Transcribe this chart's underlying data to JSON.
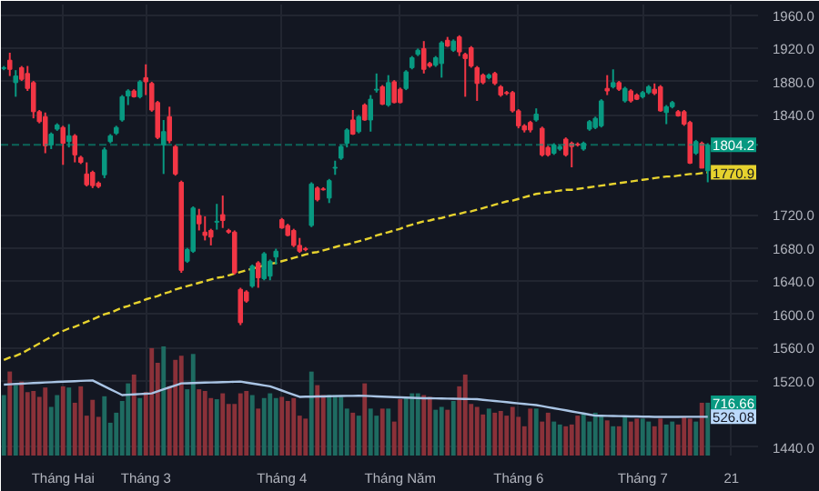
{
  "chart_data": {
    "type": "candlestick",
    "categories": [
      null,
      null,
      null,
      null,
      null,
      null,
      null,
      null,
      null,
      null,
      "Tháng Hai",
      null,
      null,
      null,
      null,
      null,
      null,
      null,
      null,
      null,
      null,
      null,
      null,
      null,
      "Tháng 3",
      null,
      null,
      null,
      null,
      null,
      null,
      null,
      null,
      null,
      null,
      null,
      null,
      null,
      null,
      null,
      null,
      null,
      null,
      null,
      null,
      null,
      null,
      "Tháng 4",
      null,
      null,
      null,
      null,
      null,
      null,
      null,
      null,
      null,
      null,
      null,
      null,
      null,
      null,
      null,
      null,
      null,
      null,
      null,
      "Tháng Năm",
      null,
      null,
      null,
      null,
      null,
      null,
      null,
      null,
      null,
      null,
      null,
      null,
      null,
      null,
      null,
      null,
      null,
      null,
      null,
      "Tháng 6",
      null,
      null,
      null,
      null,
      null,
      null,
      null,
      null,
      null,
      null,
      null,
      null,
      null,
      null,
      null,
      null,
      null,
      null,
      null,
      null,
      "Tháng 7",
      null,
      null,
      null,
      null,
      null,
      null,
      null,
      null,
      null,
      null,
      null,
      null,
      null,
      null,
      "21",
      null,
      null,
      null,
      null
    ],
    "ohlc": [
      [
        1896,
        1899,
        1894,
        1897
      ],
      [
        1906,
        1915,
        1887,
        1895
      ],
      [
        1879,
        1894,
        1862,
        1887
      ],
      [
        1897,
        1899,
        1881,
        1883
      ],
      [
        1890,
        1899,
        1869,
        1872
      ],
      [
        1879,
        1881,
        1836,
        1844
      ],
      [
        1844,
        1846,
        1830,
        1832
      ],
      [
        1838,
        1843,
        1794,
        1803
      ],
      [
        1804,
        1819,
        1799,
        1817
      ],
      [
        1823,
        1830,
        1821,
        1828
      ],
      [
        1825,
        1827,
        1780,
        1806
      ],
      [
        1808,
        1829,
        1801,
        1815
      ],
      [
        1815,
        1817,
        1783,
        1792
      ],
      [
        1789,
        1791,
        1781,
        1783
      ],
      [
        1769,
        1783,
        1754,
        1756
      ],
      [
        1771,
        1773,
        1752,
        1755
      ],
      [
        1758,
        1760,
        1752,
        1754
      ],
      [
        1768,
        1801,
        1764,
        1798
      ],
      [
        1808,
        1817,
        1806,
        1815
      ],
      [
        1818,
        1827,
        1816,
        1825
      ],
      [
        1834,
        1864,
        1832,
        1862
      ],
      [
        1863,
        1871,
        1852,
        1869
      ],
      [
        1869,
        1871,
        1861,
        1862
      ],
      [
        1862,
        1882,
        1860,
        1880
      ],
      [
        1885,
        1901,
        1864,
        1880
      ],
      [
        1878,
        1880,
        1844,
        1846
      ],
      [
        1855,
        1857,
        1811,
        1813
      ],
      [
        1804,
        1834,
        1769,
        1820
      ],
      [
        1838,
        1850,
        1806,
        1809
      ],
      [
        1802,
        1804,
        1767,
        1769
      ],
      [
        1759,
        1761,
        1650,
        1653
      ],
      [
        1664,
        1680,
        1662,
        1678
      ],
      [
        1676,
        1730,
        1674,
        1728
      ],
      [
        1719,
        1727,
        1701,
        1709
      ],
      [
        1699,
        1718,
        1689,
        1695
      ],
      [
        1701,
        1703,
        1683,
        1693
      ],
      [
        1711,
        1733,
        1702,
        1712
      ],
      [
        1720,
        1743,
        1704,
        1713
      ],
      [
        1701,
        1703,
        1697,
        1699
      ],
      [
        1699,
        1701,
        1648,
        1650
      ],
      [
        1630,
        1632,
        1587,
        1590
      ],
      [
        1627,
        1629,
        1614,
        1616
      ],
      [
        1634,
        1660,
        1632,
        1658
      ],
      [
        1662,
        1664,
        1632,
        1644
      ],
      [
        1643,
        1675,
        1641,
        1673
      ],
      [
        1646,
        1666,
        1641,
        1664
      ],
      [
        1669,
        1679,
        1660,
        1676
      ],
      [
        1714,
        1716,
        1703,
        1704
      ],
      [
        1707,
        1709,
        1694,
        1695
      ],
      [
        1701,
        1703,
        1681,
        1683
      ],
      [
        1683,
        1692,
        1674,
        1676
      ],
      [
        1679,
        1681,
        1676,
        1678
      ],
      [
        1707,
        1759,
        1705,
        1757
      ],
      [
        1752,
        1754,
        1736,
        1738
      ],
      [
        1751,
        1753,
        1749,
        1750
      ],
      [
        1740,
        1763,
        1734,
        1761
      ],
      [
        1776,
        1785,
        1768,
        1777
      ],
      [
        1788,
        1804,
        1786,
        1802
      ],
      [
        1806,
        1824,
        1801,
        1822
      ],
      [
        1834,
        1846,
        1816,
        1817
      ],
      [
        1820,
        1840,
        1818,
        1838
      ],
      [
        1852,
        1854,
        1833,
        1834
      ],
      [
        1834,
        1864,
        1820,
        1859
      ],
      [
        1870,
        1890,
        1867,
        1871
      ],
      [
        1874,
        1876,
        1852,
        1853
      ],
      [
        1852,
        1888,
        1850,
        1879
      ],
      [
        1880,
        1882,
        1854,
        1855
      ],
      [
        1871,
        1873,
        1854,
        1855
      ],
      [
        1872,
        1894,
        1870,
        1892
      ],
      [
        1897,
        1911,
        1895,
        1909
      ],
      [
        1913,
        1920,
        1911,
        1918
      ],
      [
        1920,
        1929,
        1890,
        1895
      ],
      [
        1902,
        1904,
        1897,
        1899
      ],
      [
        1900,
        1911,
        1898,
        1909
      ],
      [
        1902,
        1929,
        1885,
        1927
      ],
      [
        1930,
        1934,
        1922,
        1923
      ],
      [
        1918,
        1931,
        1916,
        1929
      ],
      [
        1934,
        1936,
        1911,
        1916
      ],
      [
        1913,
        1915,
        1862,
        1908
      ],
      [
        1921,
        1923,
        1897,
        1899
      ],
      [
        1897,
        1899,
        1857,
        1878
      ],
      [
        1888,
        1890,
        1877,
        1879
      ],
      [
        1885,
        1890,
        1883,
        1888
      ],
      [
        1890,
        1892,
        1876,
        1878
      ],
      [
        1874,
        1876,
        1862,
        1864
      ],
      [
        1867,
        1869,
        1864,
        1866
      ],
      [
        1867,
        1869,
        1843,
        1845
      ],
      [
        1845,
        1847,
        1824,
        1827
      ],
      [
        1827,
        1829,
        1819,
        1822
      ],
      [
        1831,
        1833,
        1819,
        1822
      ],
      [
        1834,
        1848,
        1832,
        1841
      ],
      [
        1824,
        1826,
        1790,
        1792
      ],
      [
        1801,
        1803,
        1790,
        1792
      ],
      [
        1794,
        1806,
        1792,
        1804
      ],
      [
        1799,
        1804,
        1797,
        1802
      ],
      [
        1811,
        1813,
        1790,
        1792
      ],
      [
        1806,
        1808,
        1777,
        1802
      ],
      [
        1805,
        1807,
        1802,
        1804
      ],
      [
        1799,
        1808,
        1797,
        1806
      ],
      [
        1823,
        1834,
        1821,
        1832
      ],
      [
        1825,
        1838,
        1823,
        1836
      ],
      [
        1827,
        1859,
        1825,
        1857
      ],
      [
        1872,
        1888,
        1864,
        1869
      ],
      [
        1874,
        1895,
        1872,
        1879
      ],
      [
        1879,
        1881,
        1869,
        1871
      ],
      [
        1857,
        1874,
        1855,
        1872
      ],
      [
        1869,
        1871,
        1855,
        1857
      ],
      [
        1864,
        1866,
        1858,
        1859
      ],
      [
        1862,
        1869,
        1860,
        1867
      ],
      [
        1867,
        1876,
        1865,
        1874
      ],
      [
        1871,
        1878,
        1864,
        1866
      ],
      [
        1874,
        1876,
        1844,
        1845
      ],
      [
        1843,
        1852,
        1829,
        1850
      ],
      [
        1850,
        1857,
        1848,
        1855
      ],
      [
        1844,
        1846,
        1838,
        1839
      ],
      [
        1844,
        1846,
        1827,
        1829
      ],
      [
        1831,
        1833,
        1781,
        1782
      ],
      [
        1794,
        1810,
        1792,
        1808
      ],
      [
        1806,
        1808,
        1776,
        1776
      ],
      [
        1773,
        1806,
        1759,
        1804
      ],
      null,
      null,
      null,
      null,
      null,
      null,
      null,
      null
    ],
    "colors": [
      "#089981",
      "#f23645",
      "#089981",
      "#f23645",
      "#f23645",
      "#f23645",
      "#f23645",
      "#f23645",
      "#089981",
      "#089981",
      "#f23645",
      "#089981",
      "#f23645",
      "#f23645",
      "#f23645",
      "#f23645",
      "#f23645",
      "#089981",
      "#089981",
      "#089981",
      "#089981",
      "#089981",
      "#f23645",
      "#089981",
      "#f23645",
      "#f23645",
      "#f23645",
      "#089981",
      "#f23645",
      "#f23645",
      "#f23645",
      "#089981",
      "#089981",
      "#f23645",
      "#f23645",
      "#f23645",
      "#089981",
      "#f23645",
      "#f23645",
      "#f23645",
      "#f23645",
      "#f23645",
      "#089981",
      "#f23645",
      "#089981",
      "#089981",
      "#089981",
      "#f23645",
      "#f23645",
      "#f23645",
      "#f23645",
      "#f23645",
      "#089981",
      "#f23645",
      "#f23645",
      "#089981",
      "#089981",
      "#089981",
      "#089981",
      "#f23645",
      "#089981",
      "#f23645",
      "#089981",
      "#089981",
      "#f23645",
      "#089981",
      "#f23645",
      "#f23645",
      "#089981",
      "#089981",
      "#089981",
      "#f23645",
      "#f23645",
      "#089981",
      "#089981",
      "#f23645",
      "#089981",
      "#f23645",
      "#f23645",
      "#f23645",
      "#f23645",
      "#f23645",
      "#089981",
      "#f23645",
      "#f23645",
      "#f23645",
      "#f23645",
      "#f23645",
      "#f23645",
      "#f23645",
      "#089981",
      "#f23645",
      "#f23645",
      "#089981",
      "#089981",
      "#f23645",
      "#f23645",
      "#f23645",
      "#089981",
      "#089981",
      "#089981",
      "#089981",
      "#f23645",
      "#089981",
      "#f23645",
      "#089981",
      "#f23645",
      "#f23645",
      "#089981",
      "#089981",
      "#f23645",
      "#f23645",
      "#089981",
      "#089981",
      "#f23645",
      "#f23645",
      "#f23645",
      "#089981",
      "#f23645",
      "#089981",
      null,
      null,
      null,
      null,
      null,
      null,
      null,
      null
    ],
    "series": [
      {
        "type": "bar",
        "axis": "y2",
        "values": [
          820,
          1140,
          955,
          1003,
          860,
          876,
          796,
          923,
          660,
          820,
          939,
          923,
          716,
          939,
          541,
          756,
          525,
          804,
          445,
          581,
          740,
          979,
          1099,
          780,
          860,
          1457,
          1258,
          1481,
          939,
          1298,
          1354,
          899,
          1378,
          899,
          876,
          780,
          764,
          844,
          700,
          700,
          844,
          876,
          820,
          637,
          780,
          844,
          780,
          796,
          740,
          780,
          541,
          501,
          1139,
          955,
          820,
          820,
          820,
          796,
          637,
          581,
          541,
          979,
          637,
          541,
          637,
          637,
          461,
          764,
          780,
          844,
          844,
          820,
          796,
          621,
          660,
          621,
          740,
          939,
          1099,
          700,
          660,
          557,
          637,
          581,
          605,
          541,
          660,
          525,
          397,
          637,
          637,
          461,
          581,
          461,
          421,
          397,
          421,
          541,
          581,
          461,
          581,
          541,
          477,
          397,
          397,
          541,
          461,
          501,
          501,
          461,
          397,
          501,
          421,
          461,
          421,
          525,
          501,
          461,
          716,
          716.66,
          null,
          null,
          null,
          null,
          null,
          null,
          null,
          null
        ],
        "colors": [
          "#1e6b61",
          "#8a3139",
          "#1e6b61",
          "#8a3139",
          "#8a3139",
          "#8a3139",
          "#8a3139",
          "#8a3139",
          "#1e6b61",
          "#1e6b61",
          "#8a3139",
          "#1e6b61",
          "#8a3139",
          "#8a3139",
          "#8a3139",
          "#8a3139",
          "#8a3139",
          "#1e6b61",
          "#1e6b61",
          "#1e6b61",
          "#1e6b61",
          "#1e6b61",
          "#8a3139",
          "#1e6b61",
          "#8a3139",
          "#8a3139",
          "#8a3139",
          "#1e6b61",
          "#8a3139",
          "#8a3139",
          "#8a3139",
          "#1e6b61",
          "#1e6b61",
          "#8a3139",
          "#8a3139",
          "#8a3139",
          "#1e6b61",
          "#8a3139",
          "#8a3139",
          "#8a3139",
          "#8a3139",
          "#8a3139",
          "#1e6b61",
          "#8a3139",
          "#1e6b61",
          "#1e6b61",
          "#1e6b61",
          "#8a3139",
          "#8a3139",
          "#8a3139",
          "#8a3139",
          "#8a3139",
          "#1e6b61",
          "#8a3139",
          "#8a3139",
          "#1e6b61",
          "#1e6b61",
          "#1e6b61",
          "#1e6b61",
          "#8a3139",
          "#1e6b61",
          "#8a3139",
          "#1e6b61",
          "#1e6b61",
          "#8a3139",
          "#1e6b61",
          "#8a3139",
          "#8a3139",
          "#1e6b61",
          "#1e6b61",
          "#1e6b61",
          "#8a3139",
          "#8a3139",
          "#1e6b61",
          "#1e6b61",
          "#8a3139",
          "#1e6b61",
          "#8a3139",
          "#8a3139",
          "#8a3139",
          "#8a3139",
          "#8a3139",
          "#1e6b61",
          "#8a3139",
          "#8a3139",
          "#8a3139",
          "#8a3139",
          "#8a3139",
          "#8a3139",
          "#8a3139",
          "#1e6b61",
          "#8a3139",
          "#8a3139",
          "#1e6b61",
          "#1e6b61",
          "#8a3139",
          "#8a3139",
          "#8a3139",
          "#1e6b61",
          "#1e6b61",
          "#1e6b61",
          "#1e6b61",
          "#8a3139",
          "#1e6b61",
          "#8a3139",
          "#1e6b61",
          "#8a3139",
          "#8a3139",
          "#1e6b61",
          "#1e6b61",
          "#8a3139",
          "#8a3139",
          "#1e6b61",
          "#1e6b61",
          "#8a3139",
          "#8a3139",
          "#8a3139",
          "#1e6b61",
          "#8a3139",
          "#1e6b61",
          null,
          null,
          null,
          null,
          null,
          null,
          null,
          null
        ]
      },
      {
        "type": "line",
        "axis": "y2",
        "color": "#a9c4e4",
        "values": [
          963,
          967,
          971,
          975,
          979,
          983,
          987,
          991,
          995,
          999,
          1003,
          1006,
          1009,
          1013,
          1016,
          1019,
          979,
          939,
          899,
          860,
          820,
          825,
          830,
          834,
          839,
          844,
          871,
          898,
          925,
          952,
          979,
          981,
          984,
          986,
          989,
          991,
          993,
          996,
          998,
          1001,
          1003,
          990,
          977,
          965,
          952,
          939,
          910,
          882,
          853,
          825,
          796,
          798,
          799,
          801,
          802,
          804,
          806,
          807,
          809,
          810,
          812,
          809,
          806,
          802,
          799,
          796,
          793,
          790,
          786,
          783,
          780,
          778,
          777,
          775,
          774,
          772,
          770,
          769,
          767,
          766,
          764,
          756,
          748,
          740,
          732,
          724,
          716,
          708,
          700,
          692,
          684,
          670,
          655,
          641,
          627,
          613,
          598,
          584,
          570,
          555,
          541,
          539,
          538,
          536,
          535,
          533,
          531,
          530,
          528,
          527,
          525,
          525,
          525,
          525,
          525,
          526,
          526,
          526,
          526,
          526,
          null,
          null,
          null,
          null,
          null,
          null,
          null,
          null
        ]
      },
      {
        "type": "line",
        "color": "#e6d22e",
        "line_style": "dashed",
        "values": [
          1545,
          1548,
          1550,
          1553,
          1557,
          1561,
          1565,
          1569,
          1573,
          1577,
          1580,
          1583,
          1585,
          1588,
          1591,
          1594,
          1597,
          1600,
          1602,
          1605,
          1608,
          1610,
          1613,
          1615,
          1618,
          1620,
          1622,
          1625,
          1627,
          1630,
          1632,
          1634,
          1636,
          1638,
          1640,
          1642,
          1644,
          1645,
          1647,
          1649,
          1651,
          1653,
          1655,
          1657,
          1659,
          1661,
          1662,
          1664,
          1666,
          1668,
          1670,
          1672,
          1674,
          1675,
          1677,
          1679,
          1681,
          1683,
          1684,
          1686,
          1688,
          1690,
          1692,
          1695,
          1697,
          1699,
          1701,
          1703,
          1706,
          1708,
          1710,
          1712,
          1713,
          1715,
          1716,
          1718,
          1720,
          1721,
          1723,
          1724,
          1726,
          1728,
          1730,
          1732,
          1734,
          1736,
          1737,
          1739,
          1741,
          1743,
          1745,
          1746,
          1747,
          1748,
          1749,
          1750,
          1750,
          1751,
          1752,
          1753,
          1754,
          1755,
          1756,
          1757,
          1758,
          1759,
          1760,
          1761,
          1762,
          1763,
          1764,
          1765,
          1766,
          1766,
          1767,
          1768,
          1769,
          1769,
          1770,
          1771,
          null,
          null,
          null,
          null,
          null,
          null,
          null,
          null
        ]
      }
    ],
    "ylim": [
      1430,
      1973
    ],
    "yticks": [
      {
        "value": 1960,
        "label": "1960.0"
      },
      {
        "value": 1920,
        "label": "1920.0"
      },
      {
        "value": 1880,
        "label": "1880.0"
      },
      {
        "value": 1840,
        "label": "1840.0"
      },
      {
        "value": 1720,
        "label": "1720.0"
      },
      {
        "value": 1680,
        "label": "1680.0"
      },
      {
        "value": 1640,
        "label": "1640.0"
      },
      {
        "value": 1600,
        "label": "1600.0"
      },
      {
        "value": 1560,
        "label": "1560.0"
      },
      {
        "value": 1520,
        "label": "1520.0"
      },
      {
        "value": 1440,
        "label": "1440.0"
      }
    ],
    "y2lim": [
      0,
      6118
    ],
    "y2ticks": [
      {
        "value": 716.66,
        "label": "716.66"
      },
      {
        "value": 526.08,
        "label": "526.08"
      }
    ],
    "ref_lines": [
      {
        "axis": "y",
        "value": 1804.2,
        "label": "1804.2",
        "color": "#089981",
        "line_style": "dashed"
      }
    ],
    "annotations": [
      {
        "text": "1770.9",
        "y": 1770.9
      }
    ],
    "grid": true
  }
}
